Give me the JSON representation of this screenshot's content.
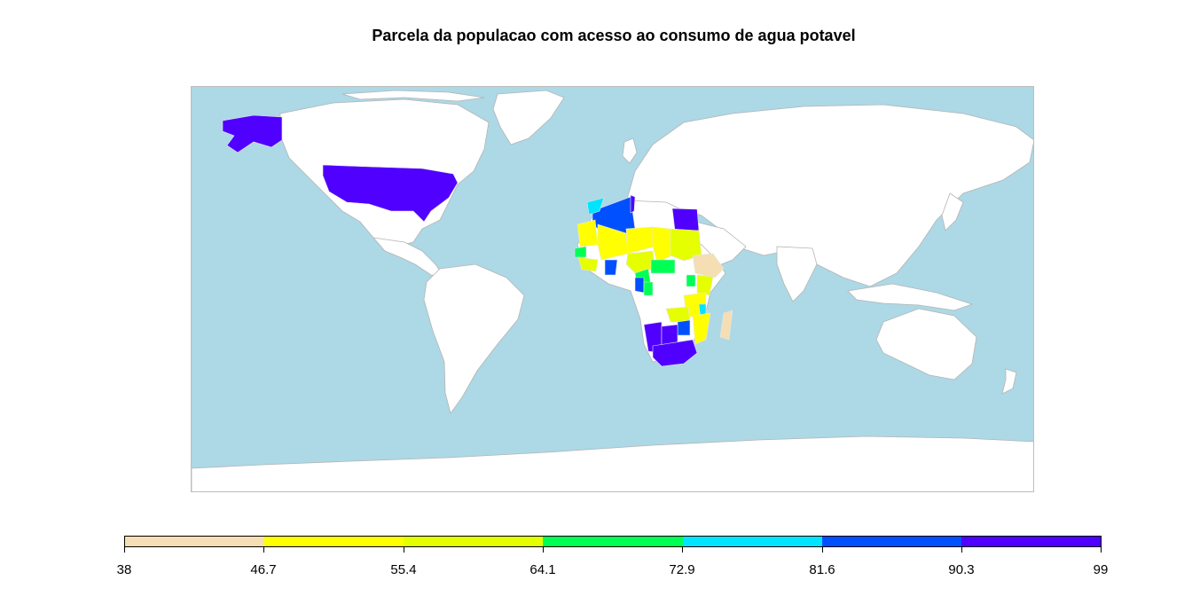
{
  "title": "Parcela da populacao com acesso ao consumo de agua potavel",
  "colors": {
    "ocean": "#add8e6",
    "land_nodata": "#ffffff",
    "border": "#b4b4b4"
  },
  "legend": {
    "breaks": [
      "38",
      "46.7",
      "55.4",
      "64.1",
      "72.9",
      "81.6",
      "90.3",
      "99"
    ],
    "classes": [
      {
        "range": [
          38,
          46.7
        ],
        "color": "#f5deb3"
      },
      {
        "range": [
          46.7,
          55.4
        ],
        "color": "#ffff00"
      },
      {
        "range": [
          55.4,
          64.1
        ],
        "color": "#e6ff00"
      },
      {
        "range": [
          64.1,
          72.9
        ],
        "color": "#00ff55"
      },
      {
        "range": [
          72.9,
          81.6
        ],
        "color": "#00e5ff"
      },
      {
        "range": [
          81.6,
          90.3
        ],
        "color": "#0050ff"
      },
      {
        "range": [
          90.3,
          99
        ],
        "color": "#5000ff"
      }
    ]
  },
  "chart_data": {
    "type": "choropleth",
    "title": "Parcela da populacao com acesso ao consumo de agua potavel",
    "regions": [
      {
        "name": "United States",
        "class": "90.3-99"
      },
      {
        "name": "Alaska",
        "class": "90.3-99"
      },
      {
        "name": "Egypt",
        "class": "90.3-99"
      },
      {
        "name": "Algeria",
        "class": "81.6-90.3"
      },
      {
        "name": "Morocco",
        "class": "72.9-81.6"
      },
      {
        "name": "Tunisia",
        "class": "90.3-99"
      },
      {
        "name": "Mauritania",
        "class": "46.7-55.4"
      },
      {
        "name": "Mali",
        "class": "46.7-55.4"
      },
      {
        "name": "Niger",
        "class": "46.7-55.4"
      },
      {
        "name": "Chad",
        "class": "46.7-55.4"
      },
      {
        "name": "Sudan",
        "class": "55.4-64.1"
      },
      {
        "name": "Nigeria",
        "class": "55.4-64.1"
      },
      {
        "name": "Senegal",
        "class": "64.1-72.9"
      },
      {
        "name": "Guinea",
        "class": "55.4-64.1"
      },
      {
        "name": "Ghana",
        "class": "81.6-90.3"
      },
      {
        "name": "Cameroon",
        "class": "64.1-72.9"
      },
      {
        "name": "Central African Republic",
        "class": "64.1-72.9"
      },
      {
        "name": "Gabon",
        "class": "81.6-90.3"
      },
      {
        "name": "Congo",
        "class": "64.1-72.9"
      },
      {
        "name": "Ethiopia",
        "class": "38-46.7"
      },
      {
        "name": "Kenya",
        "class": "55.4-64.1"
      },
      {
        "name": "Uganda",
        "class": "64.1-72.9"
      },
      {
        "name": "Tanzania",
        "class": "46.7-55.4"
      },
      {
        "name": "Malawi",
        "class": "72.9-81.6"
      },
      {
        "name": "Mozambique",
        "class": "46.7-55.4"
      },
      {
        "name": "Zambia",
        "class": "55.4-64.1"
      },
      {
        "name": "Zimbabwe",
        "class": "81.6-90.3"
      },
      {
        "name": "Namibia",
        "class": "90.3-99"
      },
      {
        "name": "Botswana",
        "class": "90.3-99"
      },
      {
        "name": "South Africa",
        "class": "90.3-99"
      },
      {
        "name": "Madagascar",
        "class": "38-46.7"
      }
    ]
  }
}
